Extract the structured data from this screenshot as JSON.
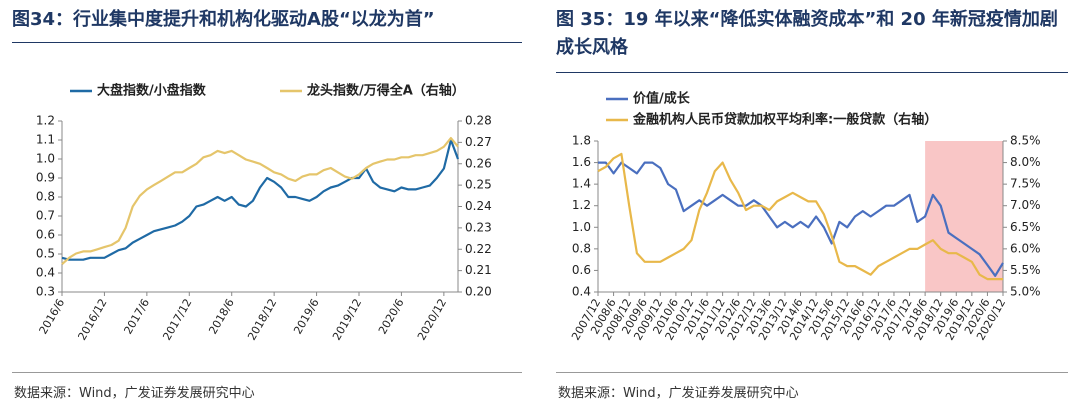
{
  "chart_data": [
    {
      "type": "line",
      "title": "图34：行业集中度提升和机构化驱动A股“以龙为首”",
      "source": "数据来源：Wind，广发证券发展研究中心",
      "categories": [
        "2016/6",
        null,
        null,
        null,
        null,
        null,
        "2016/12",
        null,
        null,
        null,
        null,
        null,
        "2017/6",
        null,
        null,
        null,
        null,
        null,
        "2017/12",
        null,
        null,
        null,
        null,
        null,
        "2018/6",
        null,
        null,
        null,
        null,
        null,
        "2018/12",
        null,
        null,
        null,
        null,
        null,
        "2019/6",
        null,
        null,
        null,
        null,
        null,
        "2019/12",
        null,
        null,
        null,
        null,
        null,
        "2020/6",
        null,
        null,
        null,
        null,
        null,
        "2020/12",
        null,
        null
      ],
      "series": [
        {
          "name": "大盘指数/小盘指数",
          "color": "#1f6aa5",
          "axis": "y",
          "values": [
            0.48,
            0.47,
            0.47,
            0.47,
            0.48,
            0.48,
            0.48,
            0.5,
            0.52,
            0.53,
            0.56,
            0.58,
            0.6,
            0.62,
            0.63,
            0.64,
            0.65,
            0.67,
            0.7,
            0.75,
            0.76,
            0.78,
            0.8,
            0.78,
            0.8,
            0.76,
            0.75,
            0.78,
            0.85,
            0.9,
            0.88,
            0.85,
            0.8,
            0.8,
            0.79,
            0.78,
            0.8,
            0.83,
            0.85,
            0.86,
            0.88,
            0.9,
            0.9,
            0.95,
            0.88,
            0.85,
            0.84,
            0.83,
            0.85,
            0.84,
            0.84,
            0.85,
            0.86,
            0.9,
            0.95,
            1.1,
            1.0
          ]
        },
        {
          "name": "龙头指数/万得全A（右轴）",
          "color": "#e5c56b",
          "axis": "y2",
          "values": [
            0.213,
            0.216,
            0.218,
            0.219,
            0.219,
            0.22,
            0.221,
            0.222,
            0.224,
            0.23,
            0.24,
            0.245,
            0.248,
            0.25,
            0.252,
            0.254,
            0.256,
            0.256,
            0.258,
            0.26,
            0.263,
            0.264,
            0.266,
            0.265,
            0.266,
            0.264,
            0.262,
            0.261,
            0.26,
            0.258,
            0.256,
            0.255,
            0.253,
            0.252,
            0.254,
            0.255,
            0.255,
            0.257,
            0.258,
            0.256,
            0.254,
            0.253,
            0.255,
            0.258,
            0.26,
            0.261,
            0.262,
            0.262,
            0.263,
            0.263,
            0.264,
            0.264,
            0.265,
            0.266,
            0.268,
            0.272,
            0.268
          ]
        }
      ],
      "ylim": [
        0.3,
        1.2
      ],
      "yticks": [
        0.3,
        0.4,
        0.5,
        0.6,
        0.7,
        0.8,
        0.9,
        {
          "value": 1,
          "label": "1.0"
        },
        1.1,
        1.2
      ],
      "y2lim": [
        0.2,
        0.28
      ],
      "y2ticks": [
        {
          "value": 0.2,
          "label": "0.20"
        },
        0.21,
        0.22,
        0.23,
        0.24,
        0.25,
        0.26,
        0.27,
        0.28
      ],
      "legend": "top",
      "grid": false
    },
    {
      "type": "line",
      "title": "图 35：19 年以来“降低实体融资成本”和 20 年新冠疫情加剧成长风格",
      "source": "数据来源：Wind，广发证券发展研究中心",
      "categories": [
        "2007/12",
        null,
        "2008/6",
        null,
        "2008/12",
        null,
        "2009/6",
        null,
        "2009/12",
        null,
        "2010/6",
        null,
        "2010/12",
        null,
        "2011/6",
        null,
        "2011/12",
        null,
        "2012/6",
        null,
        "2012/12",
        null,
        "2013/6",
        null,
        "2013/12",
        null,
        "2014/6",
        null,
        "2014/12",
        null,
        "2015/6",
        null,
        "2015/12",
        null,
        "2016/6",
        null,
        "2016/12",
        null,
        "2017/6",
        null,
        "2017/12",
        null,
        "2018/6",
        null,
        "2018/12",
        null,
        "2019/6",
        null,
        "2019/12",
        null,
        "2020/6",
        null,
        "2020/12"
      ],
      "highlight": {
        "from": "2018/6",
        "color": "#f9c6c6"
      },
      "series": [
        {
          "name": "价值/成长",
          "color": "#4a6fbf",
          "axis": "y",
          "values": [
            1.6,
            1.6,
            1.5,
            1.6,
            1.55,
            1.5,
            1.6,
            1.6,
            1.55,
            1.4,
            1.35,
            1.15,
            1.2,
            1.25,
            1.2,
            1.25,
            1.3,
            1.25,
            1.2,
            1.2,
            1.25,
            1.2,
            1.1,
            1.0,
            1.05,
            1.0,
            1.05,
            1.0,
            1.1,
            1.0,
            0.85,
            1.05,
            1.0,
            1.1,
            1.15,
            1.1,
            1.15,
            1.2,
            1.2,
            1.25,
            1.3,
            1.05,
            1.1,
            1.3,
            1.2,
            0.95,
            0.9,
            0.85,
            0.8,
            0.75,
            0.65,
            0.55,
            0.67
          ]
        },
        {
          "name": "金融机构人民币贷款加权平均利率:一般贷款（右轴）",
          "color": "#e8b84a",
          "axis": "y2",
          "values": [
            7.8,
            7.9,
            8.1,
            8.2,
            7.0,
            5.9,
            5.7,
            5.7,
            5.7,
            5.8,
            5.9,
            6.0,
            6.2,
            6.9,
            7.3,
            7.8,
            8.0,
            7.6,
            7.3,
            6.9,
            7.0,
            7.0,
            6.9,
            7.1,
            7.2,
            7.3,
            7.2,
            7.1,
            7.1,
            6.8,
            6.3,
            5.7,
            5.6,
            5.6,
            5.5,
            5.4,
            5.6,
            5.7,
            5.8,
            5.9,
            6.0,
            6.0,
            6.1,
            6.2,
            6.0,
            5.9,
            5.9,
            5.8,
            5.7,
            5.4,
            5.3,
            5.3,
            5.3
          ]
        }
      ],
      "ylim": [
        0.4,
        1.8
      ],
      "yticks": [
        0.4,
        0.6,
        0.8,
        {
          "value": 1,
          "label": "1.0"
        },
        1.2,
        1.4,
        1.6,
        1.8
      ],
      "y2lim": [
        5,
        8.5
      ],
      "y2ticks": [
        {
          "value": 5,
          "label": "5.0%"
        },
        {
          "value": 5.5,
          "label": "5.5%"
        },
        {
          "value": 6,
          "label": "6.0%"
        },
        {
          "value": 6.5,
          "label": "6.5%"
        },
        {
          "value": 7,
          "label": "7.0%"
        },
        {
          "value": 7.5,
          "label": "7.5%"
        },
        {
          "value": 8,
          "label": "8.0%"
        },
        {
          "value": 8.5,
          "label": "8.5%"
        }
      ],
      "legend": "top",
      "grid": false
    }
  ]
}
